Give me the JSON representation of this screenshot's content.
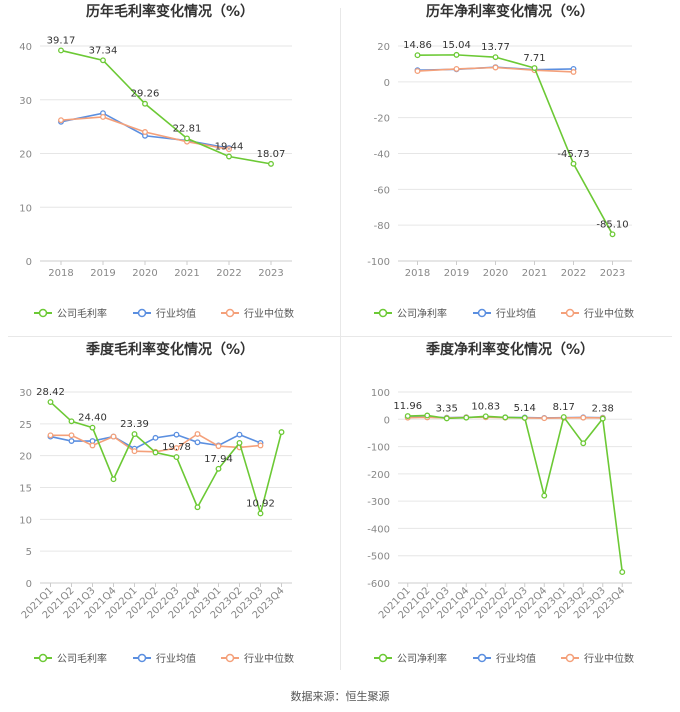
{
  "source_label": "数据来源：恒生聚源",
  "colors": {
    "company": "#6cc935",
    "industry_avg": "#5b8fe0",
    "industry_median": "#f4a07a",
    "grid": "#e6e6e6",
    "axis_text": "#888888",
    "title": "#333333"
  },
  "chart_data": [
    {
      "type": "line",
      "title": "历年毛利率变化情况（%）",
      "categories": [
        "2018",
        "2019",
        "2020",
        "2021",
        "2022",
        "2023"
      ],
      "ylim": [
        0,
        40
      ],
      "yticks": [
        0,
        10,
        20,
        30,
        40
      ],
      "grid": true,
      "legend_position": "bottom",
      "series": [
        {
          "name": "公司毛利率",
          "values": [
            39.17,
            37.34,
            29.26,
            22.81,
            19.44,
            18.07
          ],
          "labels": [
            "39.17",
            "37.34",
            "29.26",
            "22.81",
            "19.44",
            "18.07"
          ]
        },
        {
          "name": "行业均值",
          "values": [
            25.9,
            27.5,
            23.3,
            22.4,
            21.0,
            null
          ]
        },
        {
          "name": "行业中位数",
          "values": [
            26.2,
            26.8,
            24.0,
            22.2,
            20.8,
            null
          ]
        }
      ]
    },
    {
      "type": "line",
      "title": "历年净利率变化情况（%）",
      "categories": [
        "2018",
        "2019",
        "2020",
        "2021",
        "2022",
        "2023"
      ],
      "ylim": [
        -100,
        20
      ],
      "yticks": [
        -100,
        -80,
        -60,
        -40,
        -20,
        0,
        20
      ],
      "grid": true,
      "legend_position": "bottom",
      "series": [
        {
          "name": "公司净利率",
          "values": [
            14.86,
            15.04,
            13.77,
            7.71,
            -45.73,
            -85.1
          ],
          "labels": [
            "14.86",
            "15.04",
            "13.77",
            "7.71",
            "-45.73",
            "-85.10"
          ]
        },
        {
          "name": "行业均值",
          "values": [
            6.5,
            7.0,
            8.2,
            6.8,
            7.2,
            null
          ]
        },
        {
          "name": "行业中位数",
          "values": [
            6.0,
            7.2,
            8.0,
            6.5,
            5.5,
            null
          ]
        }
      ]
    },
    {
      "type": "line",
      "title": "季度毛利率变化情况（%）",
      "categories": [
        "2021Q1",
        "2021Q2",
        "2021Q3",
        "2021Q4",
        "2022Q1",
        "2022Q2",
        "2022Q3",
        "2022Q4",
        "2023Q1",
        "2023Q2",
        "2023Q3",
        "2023Q4"
      ],
      "ylim": [
        0,
        30
      ],
      "yticks": [
        0,
        5,
        10,
        15,
        20,
        25,
        30
      ],
      "grid": true,
      "legend_position": "bottom",
      "series": [
        {
          "name": "公司毛利率",
          "values": [
            28.42,
            25.4,
            24.4,
            16.3,
            23.39,
            20.5,
            19.78,
            11.9,
            17.94,
            22.0,
            10.92,
            23.7
          ],
          "labels": [
            "28.42",
            "",
            "24.40",
            "",
            "23.39",
            "",
            "19.78",
            "",
            "17.94",
            "",
            "10.92",
            ""
          ]
        },
        {
          "name": "行业均值",
          "values": [
            23.0,
            22.3,
            22.3,
            23.0,
            21.1,
            22.8,
            23.3,
            22.1,
            21.6,
            23.3,
            22.0,
            null
          ]
        },
        {
          "name": "行业中位数",
          "values": [
            23.2,
            23.2,
            21.6,
            23.0,
            20.7,
            20.6,
            21.2,
            23.4,
            21.5,
            21.3,
            21.6,
            null
          ]
        }
      ]
    },
    {
      "type": "line",
      "title": "季度净利率变化情况（%）",
      "categories": [
        "2021Q1",
        "2021Q2",
        "2021Q3",
        "2021Q4",
        "2022Q1",
        "2022Q2",
        "2022Q3",
        "2022Q4",
        "2023Q1",
        "2023Q2",
        "2023Q3",
        "2023Q4"
      ],
      "ylim": [
        -600,
        100
      ],
      "yticks": [
        -600,
        -500,
        -400,
        -300,
        -200,
        -100,
        0,
        100
      ],
      "grid": true,
      "legend_position": "bottom",
      "series": [
        {
          "name": "公司净利率",
          "values": [
            11.96,
            14.0,
            3.35,
            6.0,
            10.83,
            7.0,
            5.14,
            -280.0,
            8.17,
            -88.0,
            2.38,
            -560.0
          ],
          "labels": [
            "11.96",
            "",
            "3.35",
            "",
            "10.83",
            "",
            "5.14",
            "",
            "8.17",
            "",
            "2.38",
            ""
          ]
        },
        {
          "name": "行业均值",
          "values": [
            7.0,
            8.0,
            6.0,
            7.5,
            8.0,
            7.0,
            6.5,
            5.0,
            6.0,
            7.0,
            6.0,
            null
          ]
        },
        {
          "name": "行业中位数",
          "values": [
            6.0,
            7.0,
            5.0,
            7.0,
            7.5,
            6.0,
            5.0,
            4.0,
            5.0,
            6.0,
            5.0,
            null
          ]
        }
      ]
    }
  ]
}
